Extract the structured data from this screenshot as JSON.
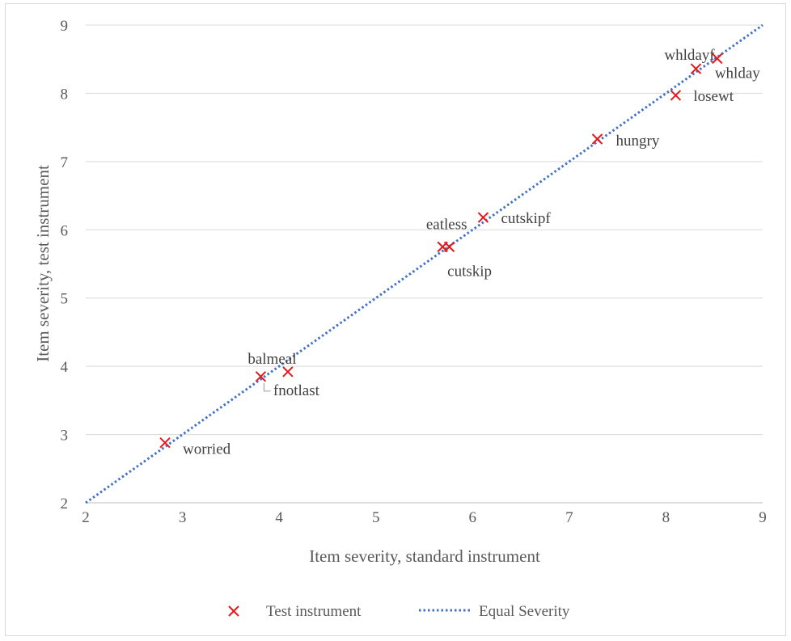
{
  "chart_data": {
    "type": "scatter",
    "title": "",
    "xlabel": "Item severity, standard instrument",
    "ylabel": "Item severity, test instrument",
    "xlim": [
      2,
      9
    ],
    "ylim": [
      2,
      9
    ],
    "x_ticks": [
      "2",
      "3",
      "4",
      "5",
      "6",
      "7",
      "8",
      "9"
    ],
    "y_ticks": [
      "2",
      "3",
      "4",
      "5",
      "6",
      "7",
      "8",
      "9"
    ],
    "grid": "horizontal",
    "legend_position": "bottom",
    "series": [
      {
        "name": "Test instrument",
        "marker": "x",
        "color": "#e41a1c",
        "points": [
          {
            "label": "worried",
            "x": 2.82,
            "y": 2.88
          },
          {
            "label": "balmeal",
            "x": 3.81,
            "y": 3.85
          },
          {
            "label": "fnotlast",
            "x": 4.09,
            "y": 3.92
          },
          {
            "label": "eatless",
            "x": 5.69,
            "y": 5.75
          },
          {
            "label": "cutskip",
            "x": 5.76,
            "y": 5.75
          },
          {
            "label": "cutskipf",
            "x": 6.11,
            "y": 6.18
          },
          {
            "label": "hungry",
            "x": 7.29,
            "y": 7.33
          },
          {
            "label": "losewt",
            "x": 8.1,
            "y": 7.97
          },
          {
            "label": "whldayf",
            "x": 8.31,
            "y": 8.36
          },
          {
            "label": "whlday",
            "x": 8.53,
            "y": 8.51
          }
        ]
      },
      {
        "name": "Equal Severity",
        "line": "dotted",
        "color": "#4472c4",
        "x": [
          2,
          9
        ],
        "y": [
          2,
          9
        ]
      }
    ]
  }
}
